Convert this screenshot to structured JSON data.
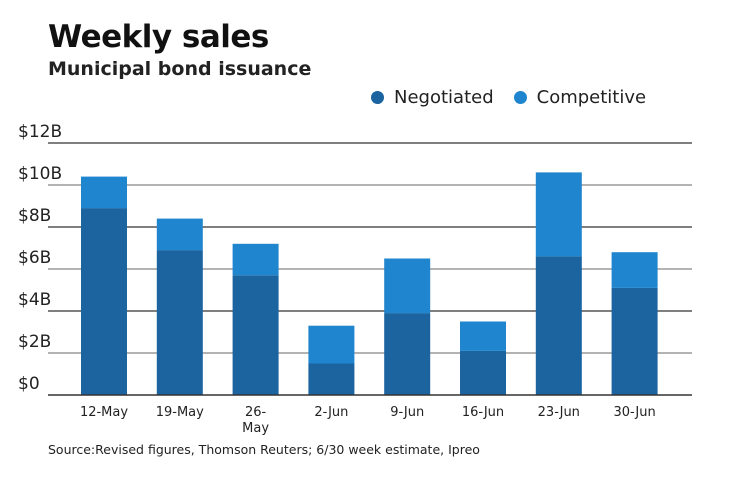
{
  "header": {
    "title": "Weekly sales",
    "subtitle": "Municipal bond issuance"
  },
  "legend": [
    {
      "label": "Negotiated",
      "color": "#1c64a0"
    },
    {
      "label": "Competitive",
      "color": "#1f85cf"
    }
  ],
  "source": "Source:Revised figures, Thomson Reuters; 6/30 week estimate, Ipreo",
  "chart_data": {
    "type": "bar",
    "stacked": true,
    "title": "Weekly sales",
    "subtitle": "Municipal bond issuance",
    "xlabel": "",
    "ylabel": "",
    "categories": [
      "12-May",
      "19-May",
      "26-May",
      "2-Jun",
      "9-Jun",
      "16-Jun",
      "23-Jun",
      "30-Jun"
    ],
    "category_labels": [
      [
        "12-May"
      ],
      [
        "19-May"
      ],
      [
        "26-",
        "May"
      ],
      [
        "2-Jun"
      ],
      [
        "9-Jun"
      ],
      [
        "16-Jun"
      ],
      [
        "23-Jun"
      ],
      [
        "30-Jun"
      ]
    ],
    "series": [
      {
        "name": "Negotiated",
        "color": "#1c64a0",
        "values": [
          8.9,
          6.9,
          5.7,
          1.5,
          3.9,
          2.1,
          6.6,
          5.1
        ]
      },
      {
        "name": "Competitive",
        "color": "#1f85cf",
        "values": [
          1.5,
          1.5,
          1.5,
          1.8,
          2.6,
          1.4,
          4.0,
          1.7
        ]
      }
    ],
    "totals": [
      10.4,
      8.4,
      7.2,
      3.3,
      6.5,
      3.5,
      10.6,
      6.8
    ],
    "units": "billions of dollars",
    "ylim": [
      0,
      12
    ],
    "yticks": [
      0,
      2,
      4,
      6,
      8,
      10,
      12
    ],
    "ytick_labels": [
      "$0",
      "$2B",
      "$4B",
      "$6B",
      "$8B",
      "$10B",
      "$12B"
    ],
    "grid": true,
    "legend_position": "top-right",
    "source": "Source:Revised figures, Thomson Reuters; 6/30 week estimate, Ipreo"
  }
}
